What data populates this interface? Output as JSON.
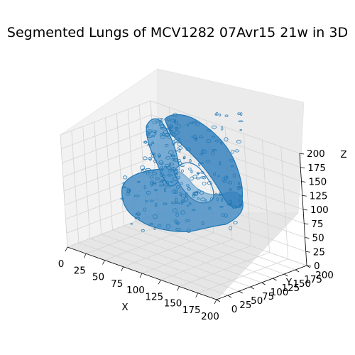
{
  "chart_data": {
    "type": "scatter",
    "title": "Segmented Lungs of MCV1282 07Avr15 21w in 3D",
    "xlabel": "X",
    "ylabel": "Y",
    "zlabel": "Z",
    "xlim": [
      0,
      200
    ],
    "ylim": [
      0,
      200
    ],
    "zlim": [
      0,
      200
    ],
    "xticks": [
      "0",
      "25",
      "50",
      "75",
      "100",
      "125",
      "150",
      "175",
      "200"
    ],
    "yticks": [
      "0",
      "25",
      "50",
      "75",
      "100",
      "125",
      "150",
      "175",
      "200"
    ],
    "zticks": [
      "0",
      "25",
      "50",
      "75",
      "100",
      "125",
      "150",
      "175",
      "200"
    ],
    "grid": true,
    "series": [
      {
        "color": "#1f77b4",
        "surface": "voxel lung surface",
        "x_range": [
          20,
          190
        ],
        "y_range": [
          30,
          180
        ],
        "z_range": [
          0,
          190
        ]
      }
    ]
  }
}
